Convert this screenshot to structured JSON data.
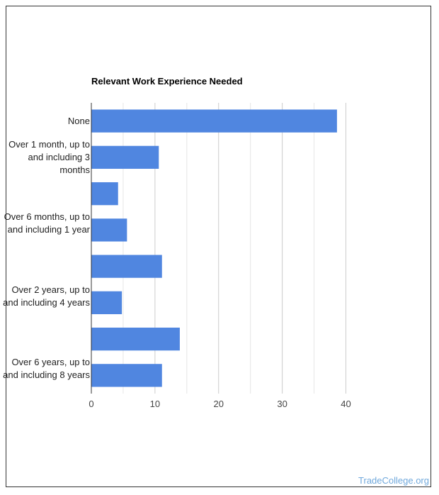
{
  "chart_data": {
    "type": "bar",
    "orientation": "horizontal",
    "title": "Relevant Work Experience Needed",
    "categories": [
      "None",
      "Over 1 month, up to and including 3 months",
      "",
      "Over 6 months, up to and including 1 year",
      "",
      "Over 2 years, up to and including 4 years",
      "",
      "Over 6 years, up to and including 8 years"
    ],
    "values": [
      38.6,
      10.6,
      4.2,
      5.6,
      11.1,
      4.8,
      13.9,
      11.1
    ],
    "xlabel": "",
    "ylabel": "",
    "xlim": [
      0,
      40
    ],
    "xticks": [
      "0",
      "10",
      "20",
      "30",
      "40"
    ],
    "grid": true,
    "bar_color": "#5086e0"
  },
  "watermark": "TradeCollege.org"
}
